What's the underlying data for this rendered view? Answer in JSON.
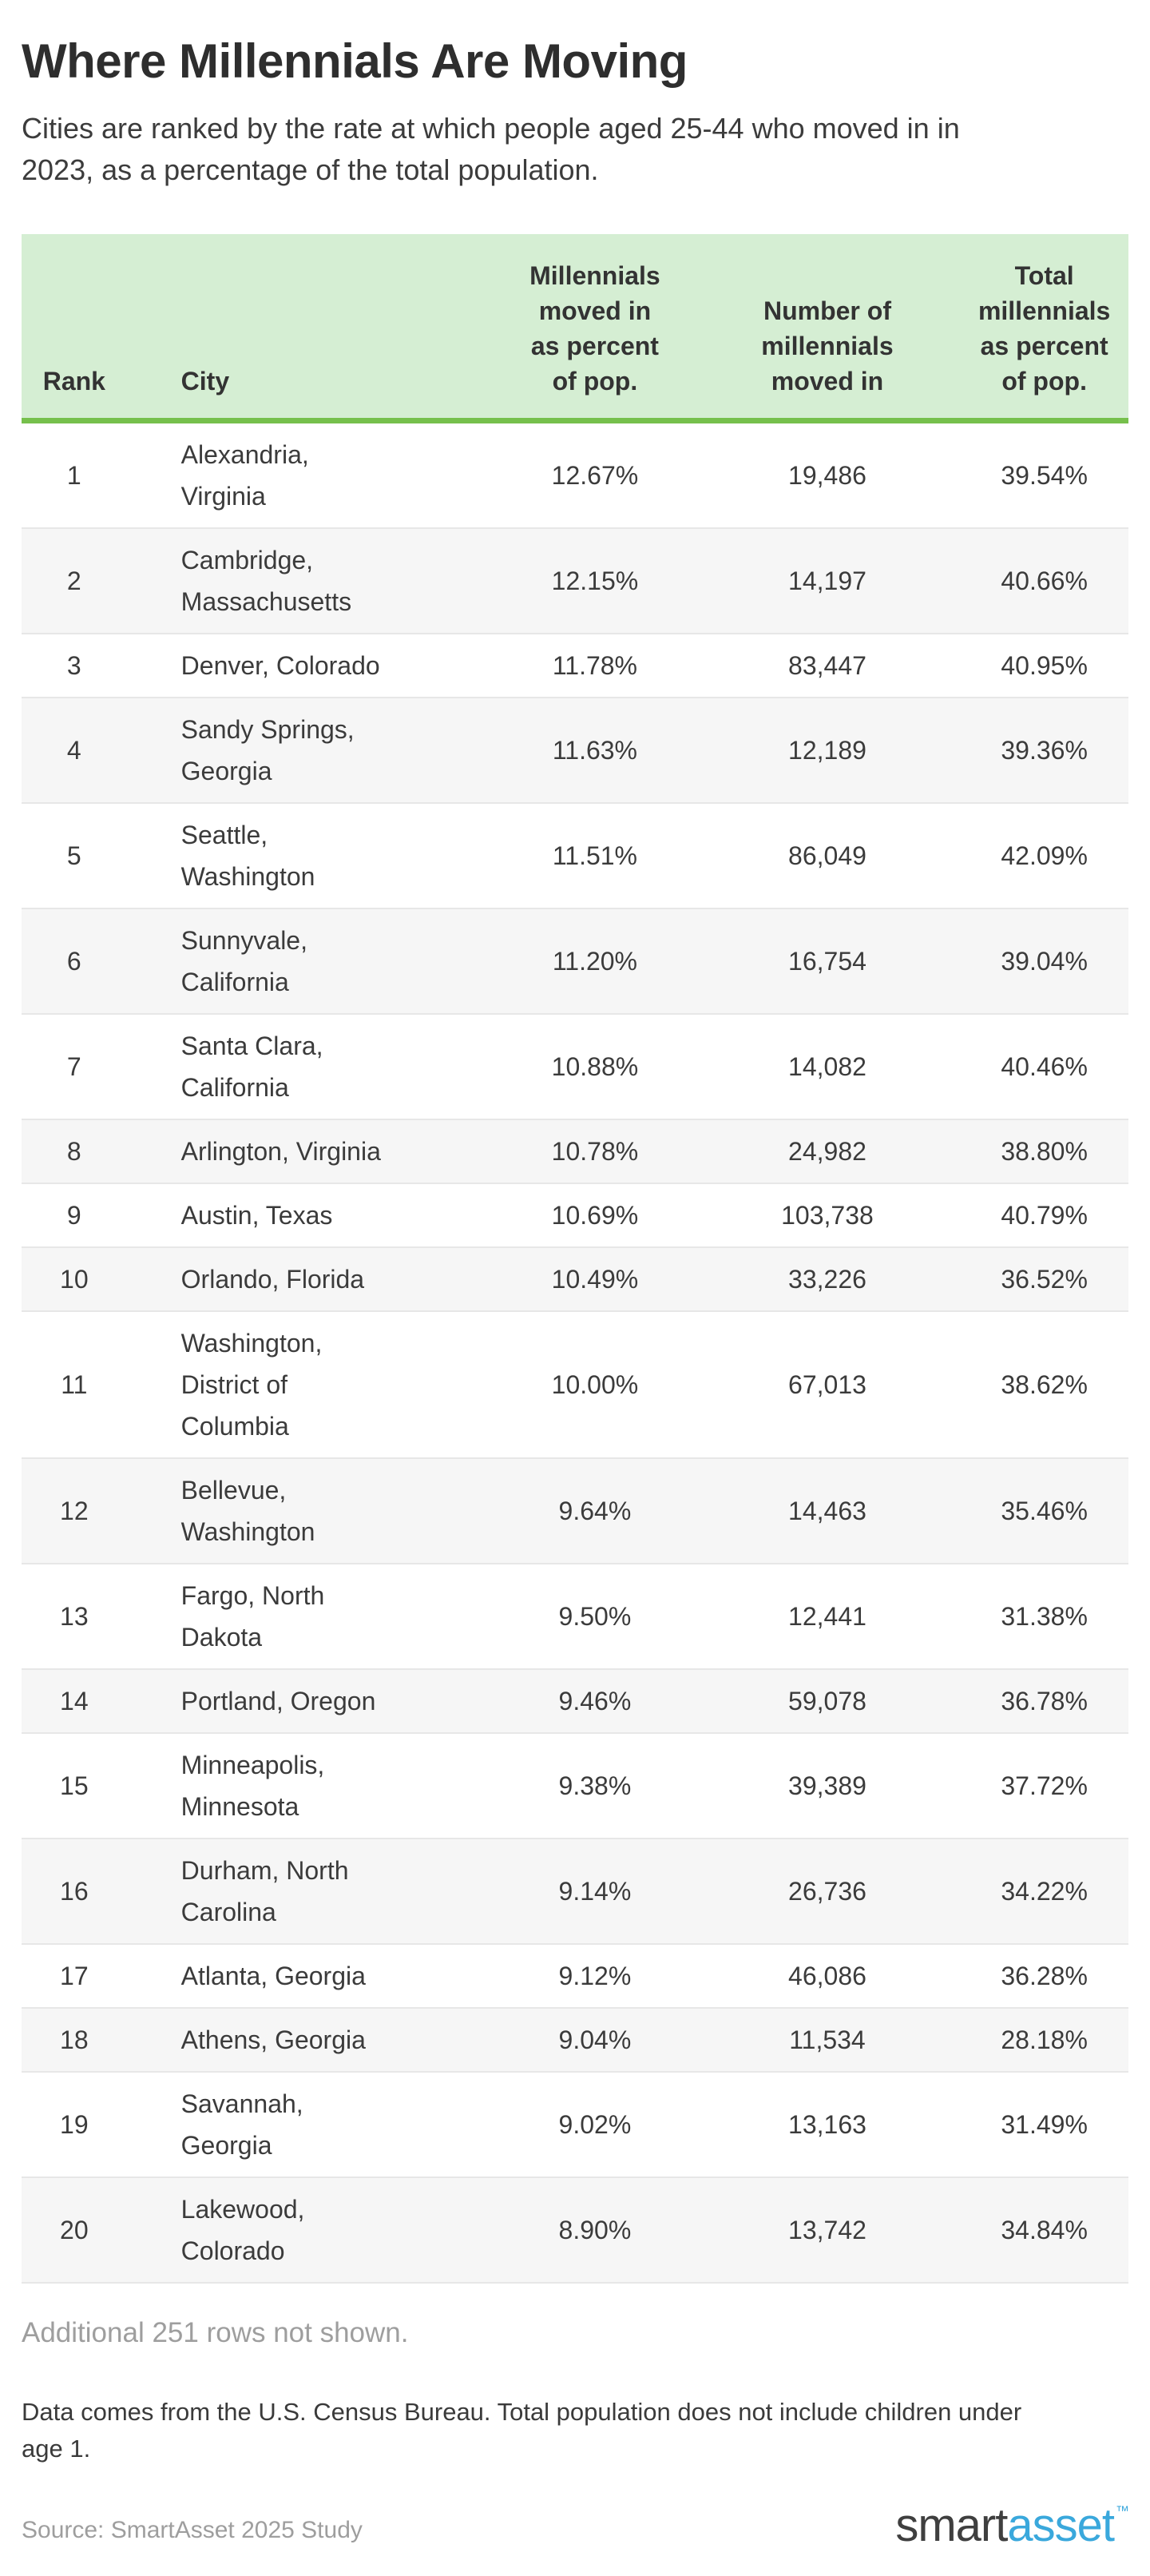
{
  "header": {
    "title": "Where Millennials Are Moving",
    "subtitle": "Cities are ranked by the rate at which people aged 25-44 who moved in in\n2023, as a percentage of the total population."
  },
  "colors": {
    "table_header_bg": "#d5eed3",
    "table_header_border_green": "#76c04c",
    "row_alt_bg": "#f6f6f6",
    "row_border": "#e7e7e7",
    "text_dark": "#3b3b3b",
    "text_muted": "#9e9e9e",
    "logo_blue": "#3aa8dc"
  },
  "table": {
    "headers": {
      "rank": "Rank",
      "city": "City",
      "moved_pct": "Millennials\nmoved in\nas percent\nof pop.",
      "moved_count": "Number of\nmillennials\nmoved in",
      "total_pct": "Total\nmillennials\nas percent\nof pop."
    },
    "rows": [
      {
        "rank": "1",
        "city": "Alexandria,\nVirginia",
        "moved_pct": "12.67%",
        "moved_count": "19,486",
        "total_pct": "39.54%"
      },
      {
        "rank": "2",
        "city": "Cambridge,\nMassachusetts",
        "moved_pct": "12.15%",
        "moved_count": "14,197",
        "total_pct": "40.66%"
      },
      {
        "rank": "3",
        "city": "Denver, Colorado",
        "moved_pct": "11.78%",
        "moved_count": "83,447",
        "total_pct": "40.95%"
      },
      {
        "rank": "4",
        "city": "Sandy Springs,\nGeorgia",
        "moved_pct": "11.63%",
        "moved_count": "12,189",
        "total_pct": "39.36%"
      },
      {
        "rank": "5",
        "city": "Seattle,\nWashington",
        "moved_pct": "11.51%",
        "moved_count": "86,049",
        "total_pct": "42.09%"
      },
      {
        "rank": "6",
        "city": "Sunnyvale,\nCalifornia",
        "moved_pct": "11.20%",
        "moved_count": "16,754",
        "total_pct": "39.04%"
      },
      {
        "rank": "7",
        "city": "Santa Clara,\nCalifornia",
        "moved_pct": "10.88%",
        "moved_count": "14,082",
        "total_pct": "40.46%"
      },
      {
        "rank": "8",
        "city": "Arlington, Virginia",
        "moved_pct": "10.78%",
        "moved_count": "24,982",
        "total_pct": "38.80%"
      },
      {
        "rank": "9",
        "city": "Austin, Texas",
        "moved_pct": "10.69%",
        "moved_count": "103,738",
        "total_pct": "40.79%"
      },
      {
        "rank": "10",
        "city": "Orlando, Florida",
        "moved_pct": "10.49%",
        "moved_count": "33,226",
        "total_pct": "36.52%"
      },
      {
        "rank": "11",
        "city": "Washington,\nDistrict of\nColumbia",
        "moved_pct": "10.00%",
        "moved_count": "67,013",
        "total_pct": "38.62%"
      },
      {
        "rank": "12",
        "city": "Bellevue,\nWashington",
        "moved_pct": "9.64%",
        "moved_count": "14,463",
        "total_pct": "35.46%"
      },
      {
        "rank": "13",
        "city": "Fargo, North\nDakota",
        "moved_pct": "9.50%",
        "moved_count": "12,441",
        "total_pct": "31.38%"
      },
      {
        "rank": "14",
        "city": "Portland, Oregon",
        "moved_pct": "9.46%",
        "moved_count": "59,078",
        "total_pct": "36.78%"
      },
      {
        "rank": "15",
        "city": "Minneapolis,\nMinnesota",
        "moved_pct": "9.38%",
        "moved_count": "39,389",
        "total_pct": "37.72%"
      },
      {
        "rank": "16",
        "city": "Durham, North\nCarolina",
        "moved_pct": "9.14%",
        "moved_count": "26,736",
        "total_pct": "34.22%"
      },
      {
        "rank": "17",
        "city": "Atlanta, Georgia",
        "moved_pct": "9.12%",
        "moved_count": "46,086",
        "total_pct": "36.28%"
      },
      {
        "rank": "18",
        "city": "Athens, Georgia",
        "moved_pct": "9.04%",
        "moved_count": "11,534",
        "total_pct": "28.18%"
      },
      {
        "rank": "19",
        "city": "Savannah,\nGeorgia",
        "moved_pct": "9.02%",
        "moved_count": "13,163",
        "total_pct": "31.49%"
      },
      {
        "rank": "20",
        "city": "Lakewood,\nColorado",
        "moved_pct": "8.90%",
        "moved_count": "13,742",
        "total_pct": "34.84%"
      }
    ]
  },
  "footer": {
    "additional_note": "Additional 251 rows not shown.",
    "data_note": "Data comes from the U.S. Census Bureau. Total population does not include children under\nage 1.",
    "source": "Source: SmartAsset 2025 Study",
    "logo_smart": "smart",
    "logo_asset": "asset",
    "logo_tm": "™"
  },
  "chart_data": {
    "type": "table",
    "title": "Where Millennials Are Moving",
    "subtitle": "Cities are ranked by the rate at which people aged 25-44 who moved in in 2023, as a percentage of the total population.",
    "columns": [
      "Rank",
      "City",
      "Millennials moved in as percent of pop.",
      "Number of millennials moved in",
      "Total millennials as percent of pop."
    ],
    "rows": [
      [
        1,
        "Alexandria, Virginia",
        12.67,
        19486,
        39.54
      ],
      [
        2,
        "Cambridge, Massachusetts",
        12.15,
        14197,
        40.66
      ],
      [
        3,
        "Denver, Colorado",
        11.78,
        83447,
        40.95
      ],
      [
        4,
        "Sandy Springs, Georgia",
        11.63,
        12189,
        39.36
      ],
      [
        5,
        "Seattle, Washington",
        11.51,
        86049,
        42.09
      ],
      [
        6,
        "Sunnyvale, California",
        11.2,
        16754,
        39.04
      ],
      [
        7,
        "Santa Clara, California",
        10.88,
        14082,
        40.46
      ],
      [
        8,
        "Arlington, Virginia",
        10.78,
        24982,
        38.8
      ],
      [
        9,
        "Austin, Texas",
        10.69,
        103738,
        40.79
      ],
      [
        10,
        "Orlando, Florida",
        10.49,
        33226,
        36.52
      ],
      [
        11,
        "Washington, District of Columbia",
        10.0,
        67013,
        38.62
      ],
      [
        12,
        "Bellevue, Washington",
        9.64,
        14463,
        35.46
      ],
      [
        13,
        "Fargo, North Dakota",
        9.5,
        12441,
        31.38
      ],
      [
        14,
        "Portland, Oregon",
        9.46,
        59078,
        36.78
      ],
      [
        15,
        "Minneapolis, Minnesota",
        9.38,
        39389,
        37.72
      ],
      [
        16,
        "Durham, North Carolina",
        9.14,
        26736,
        34.22
      ],
      [
        17,
        "Atlanta, Georgia",
        9.12,
        46086,
        36.28
      ],
      [
        18,
        "Athens, Georgia",
        9.04,
        11534,
        28.18
      ],
      [
        19,
        "Savannah, Georgia",
        9.02,
        13163,
        31.49
      ],
      [
        20,
        "Lakewood, Colorado",
        8.9,
        13742,
        34.84
      ]
    ],
    "footnotes": [
      "Additional 251 rows not shown.",
      "Data comes from the U.S. Census Bureau. Total population does not include children under age 1.",
      "Source: SmartAsset 2025 Study"
    ]
  }
}
